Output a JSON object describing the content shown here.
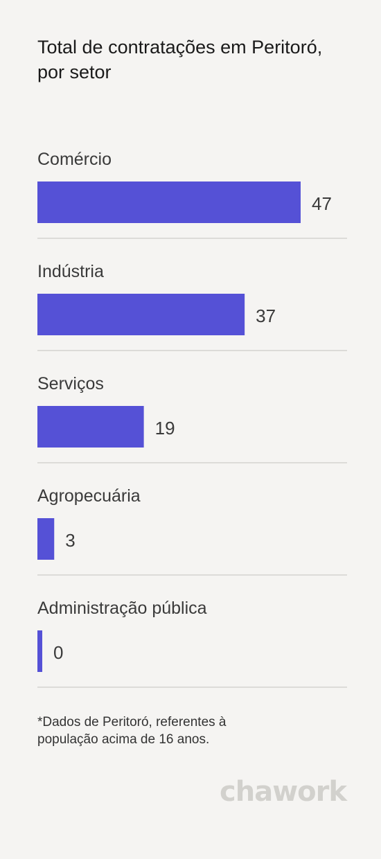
{
  "chart_data": {
    "type": "bar",
    "orientation": "horizontal",
    "title": "Total de contratações em Peritoró, por setor",
    "categories": [
      "Comércio",
      "Indústria",
      "Serviços",
      "Agropecuária",
      "Administração pública"
    ],
    "values": [
      47,
      37,
      19,
      3,
      0
    ],
    "xlim": [
      0,
      47
    ],
    "grid": false,
    "bar_color": "#5551d6",
    "separator_color": "#dcdbd8"
  },
  "footnote": "*Dados de Peritoró, referentes à população acima de 16 anos.",
  "brand": "chawork"
}
